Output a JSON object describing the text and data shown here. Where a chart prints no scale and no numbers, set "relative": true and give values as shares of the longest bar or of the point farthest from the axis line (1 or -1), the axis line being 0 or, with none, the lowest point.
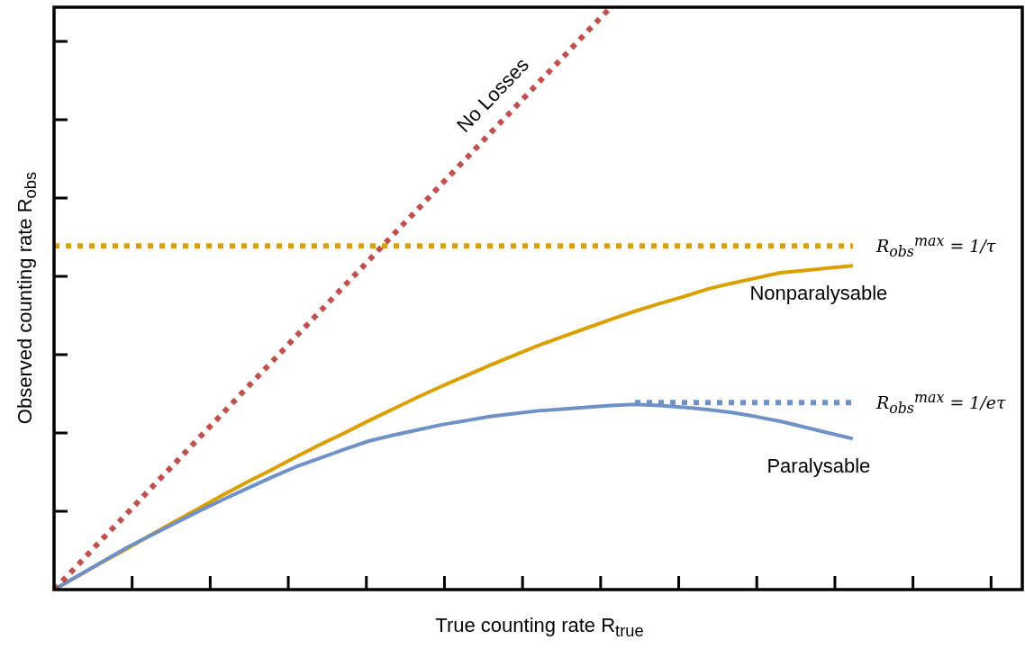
{
  "chart_data": {
    "type": "line",
    "xlabel": "True counting rate R$_{true}$",
    "ylabel": "Observed counting rate R$_{obs}$",
    "relative": true,
    "legend": false,
    "marker": "none",
    "categories": [
      null,
      null,
      null,
      null,
      null,
      null,
      null,
      null,
      null,
      null,
      null,
      null,
      null,
      null,
      null,
      null,
      null,
      null,
      null,
      null,
      null,
      null,
      null,
      null,
      null,
      null,
      null,
      null,
      null,
      null,
      null,
      null,
      null,
      null,
      null,
      null,
      null,
      null,
      null,
      null,
      null
    ],
    "series": [
      {
        "name": "No Losses",
        "color": "#bf504d",
        "line_style": "dotted",
        "values": [
          0,
          0.043,
          0.087,
          0.13,
          0.174,
          0.217,
          0.261,
          0.304,
          0.348,
          0.391,
          0.435,
          0.478,
          0.522,
          0.565,
          0.609,
          0.652,
          0.696,
          0.739,
          0.783,
          0.826,
          0.87,
          0.913,
          0.957,
          1,
          null,
          null,
          null,
          null,
          null,
          null,
          null,
          null,
          null,
          null,
          null,
          null,
          null,
          null,
          null,
          null,
          null
        ]
      },
      {
        "name": "R$_{obs}$$^{max}$ = 1/τ",
        "color": "#daa000",
        "line_style": "dotted",
        "values": [
          0.59,
          0.59,
          0.59,
          0.59,
          0.59,
          0.59,
          0.59,
          0.59,
          0.59,
          0.59,
          0.59,
          0.59,
          0.59,
          0.59,
          0.59,
          0.59,
          0.59,
          0.59,
          0.59,
          0.59,
          0.59,
          0.59,
          0.59,
          0.59,
          0.59,
          0.59,
          0.59,
          0.59,
          0.59,
          0.59,
          0.59,
          0.59,
          0.59,
          0.59,
          null,
          null,
          null,
          null,
          null,
          null,
          null
        ]
      },
      {
        "name": "R$_{obs}$$^{max}$ = 1/eτ",
        "color": "#6f91c5",
        "line_style": "dotted",
        "values": [
          null,
          null,
          null,
          null,
          null,
          null,
          null,
          null,
          null,
          null,
          null,
          null,
          null,
          null,
          null,
          null,
          null,
          null,
          null,
          null,
          null,
          null,
          null,
          null,
          0.321,
          0.321,
          0.321,
          0.321,
          0.321,
          0.321,
          0.321,
          0.321,
          0.321,
          0.321,
          null,
          null,
          null,
          null,
          null,
          null,
          null
        ]
      },
      {
        "name": "Paralysable",
        "color": "#6f91c5",
        "line_style": "solid",
        "values": [
          0,
          0.024,
          0.048,
          0.072,
          0.093,
          0.114,
          0.135,
          0.155,
          0.174,
          0.193,
          0.211,
          0.226,
          0.241,
          0.255,
          0.265,
          0.274,
          0.283,
          0.29,
          0.297,
          0.302,
          0.307,
          0.31,
          0.313,
          0.316,
          0.318,
          0.316,
          0.313,
          0.309,
          0.304,
          0.297,
          0.289,
          0.279,
          0.269,
          0.259,
          null,
          null,
          null,
          null,
          null,
          null,
          null
        ]
      },
      {
        "name": "Nonparalysable",
        "color": "#daa000",
        "line_style": "solid",
        "values": [
          0,
          0.0235,
          0.047,
          0.07,
          0.094,
          0.117,
          0.14,
          0.163,
          0.185,
          0.206,
          0.228,
          0.249,
          0.269,
          0.29,
          0.31,
          0.33,
          0.349,
          0.367,
          0.385,
          0.402,
          0.419,
          0.434,
          0.449,
          0.464,
          0.478,
          0.491,
          0.503,
          0.516,
          0.526,
          0.535,
          0.544,
          0.548,
          0.552,
          0.556,
          null,
          null,
          null,
          null,
          null,
          null,
          null
        ]
      }
    ]
  }
}
